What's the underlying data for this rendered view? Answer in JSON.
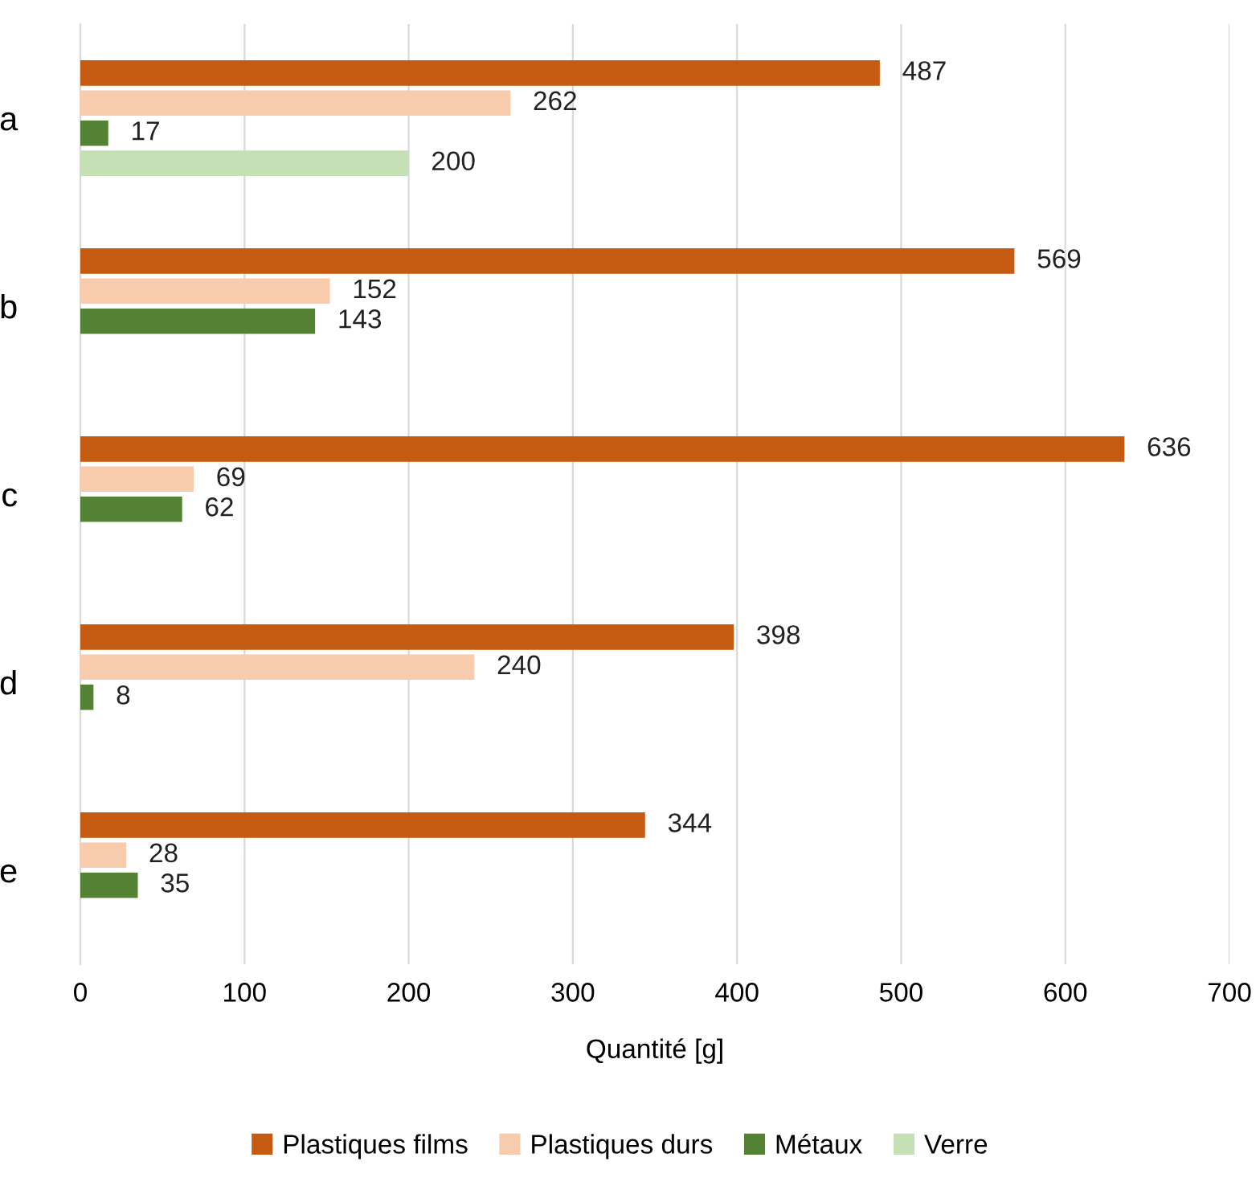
{
  "chart_data": {
    "type": "bar",
    "orientation": "horizontal",
    "categories": [
      "a",
      "b",
      "c",
      "d",
      "e"
    ],
    "series": [
      {
        "name": "Plastiques films",
        "color": "#c55a11",
        "values": [
          487,
          569,
          636,
          398,
          344
        ]
      },
      {
        "name": "Plastiques durs",
        "color": "#f8cbad",
        "values": [
          262,
          152,
          69,
          240,
          28
        ]
      },
      {
        "name": "Métaux",
        "color": "#548235",
        "values": [
          17,
          143,
          62,
          8,
          35
        ]
      },
      {
        "name": "Verre",
        "color": "#c5e0b4",
        "values": [
          200,
          null,
          null,
          null,
          null
        ]
      }
    ],
    "xlabel": "Quantité [g]",
    "xlim": [
      0,
      700
    ],
    "xticks": [
      0,
      100,
      200,
      300,
      400,
      500,
      600,
      700
    ],
    "grid": "x",
    "legend": "bottom",
    "data_labels": true
  }
}
